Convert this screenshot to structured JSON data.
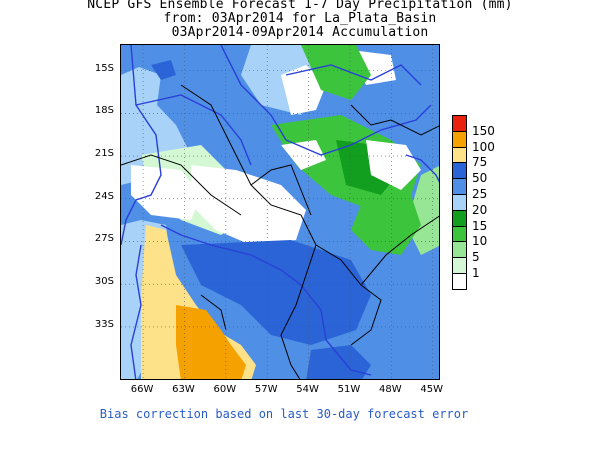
{
  "title": {
    "line1": "NCEP GFS Ensemble Forecast 1-7 Day Precipitation (mm)",
    "line2": "from: 03Apr2014  for La_Plata_Basin",
    "line3": "03Apr2014-09Apr2014 Accumulation"
  },
  "map": {
    "region": "La Plata Basin",
    "lat_ticks": [
      "15S",
      "18S",
      "21S",
      "24S",
      "27S",
      "30S",
      "33S"
    ],
    "lon_ticks": [
      "66W",
      "63W",
      "60W",
      "57W",
      "54W",
      "51W",
      "48W",
      "45W"
    ],
    "lat_range": [
      -36.8,
      -13.2
    ],
    "lon_range": [
      -67.6,
      -44.4
    ],
    "lat_values": [
      -15,
      -18,
      -21,
      -24,
      -27,
      -30,
      -33
    ],
    "lon_values": [
      -66,
      -63,
      -60,
      -57,
      -54,
      -51,
      -48,
      -45
    ]
  },
  "legend": {
    "labels": [
      "150",
      "100",
      "75",
      "50",
      "25",
      "20",
      "15",
      "10",
      "5",
      "1"
    ],
    "colors": [
      "#e8220e",
      "#f5a100",
      "#fde28a",
      "#2a64d6",
      "#4f90e6",
      "#a8d2f7",
      "#129e1e",
      "#3cc43c",
      "#96e696",
      "#d4f8d4",
      "#ffffff"
    ]
  },
  "colors": {
    "boundary_blue": "#2a3fd8",
    "border_black": "#000000"
  },
  "footer": {
    "text": "Bias correction based on last 30-day forecast error"
  }
}
